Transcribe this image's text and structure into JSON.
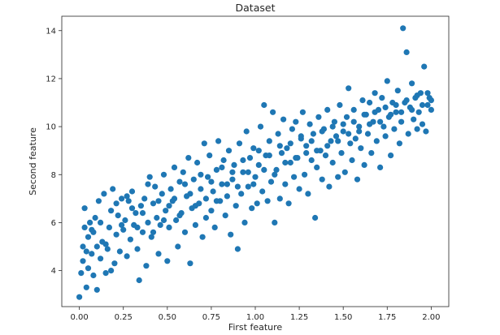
{
  "chart_data": {
    "type": "scatter",
    "title": "Dataset",
    "xlabel": "First feature",
    "ylabel": "Second feature",
    "xlim": [
      -0.1,
      2.1
    ],
    "ylim": [
      2.5,
      14.6
    ],
    "xticks": [
      0.0,
      0.25,
      0.5,
      0.75,
      1.0,
      1.25,
      1.5,
      1.75,
      2.0
    ],
    "xtick_labels": [
      "0.00",
      "0.25",
      "0.50",
      "0.75",
      "1.00",
      "1.25",
      "1.50",
      "1.75",
      "2.00"
    ],
    "yticks": [
      4,
      6,
      8,
      10,
      12,
      14
    ],
    "ytick_labels": [
      "4",
      "6",
      "8",
      "10",
      "12",
      "14"
    ],
    "grid": false,
    "marker_color": "#1f77b4",
    "points": [
      [
        0.0,
        2.9
      ],
      [
        0.01,
        3.9
      ],
      [
        0.02,
        4.4
      ],
      [
        0.02,
        5.0
      ],
      [
        0.03,
        5.8
      ],
      [
        0.03,
        6.6
      ],
      [
        0.04,
        3.3
      ],
      [
        0.05,
        4.1
      ],
      [
        0.05,
        5.4
      ],
      [
        0.06,
        6.0
      ],
      [
        0.07,
        4.7
      ],
      [
        0.08,
        3.8
      ],
      [
        0.08,
        5.6
      ],
      [
        0.09,
        6.2
      ],
      [
        0.1,
        3.2
      ],
      [
        0.1,
        5.0
      ],
      [
        0.11,
        6.9
      ],
      [
        0.12,
        4.5
      ],
      [
        0.13,
        5.2
      ],
      [
        0.14,
        7.2
      ],
      [
        0.15,
        3.9
      ],
      [
        0.16,
        4.9
      ],
      [
        0.17,
        5.8
      ],
      [
        0.18,
        6.5
      ],
      [
        0.19,
        7.4
      ],
      [
        0.2,
        4.3
      ],
      [
        0.21,
        5.5
      ],
      [
        0.22,
        6.3
      ],
      [
        0.23,
        4.8
      ],
      [
        0.24,
        7.0
      ],
      [
        0.25,
        5.7
      ],
      [
        0.26,
        6.1
      ],
      [
        0.27,
        4.6
      ],
      [
        0.28,
        6.9
      ],
      [
        0.29,
        5.3
      ],
      [
        0.3,
        7.3
      ],
      [
        0.31,
        5.9
      ],
      [
        0.32,
        6.4
      ],
      [
        0.33,
        4.9
      ],
      [
        0.34,
        3.6
      ],
      [
        0.35,
        6.7
      ],
      [
        0.36,
        5.6
      ],
      [
        0.37,
        7.0
      ],
      [
        0.38,
        4.2
      ],
      [
        0.39,
        6.0
      ],
      [
        0.4,
        7.9
      ],
      [
        0.41,
        5.4
      ],
      [
        0.42,
        6.8
      ],
      [
        0.43,
        7.5
      ],
      [
        0.44,
        6.2
      ],
      [
        0.45,
        4.7
      ],
      [
        0.46,
        5.9
      ],
      [
        0.47,
        7.2
      ],
      [
        0.48,
        8.0
      ],
      [
        0.49,
        6.5
      ],
      [
        0.5,
        4.4
      ],
      [
        0.51,
        5.8
      ],
      [
        0.52,
        7.4
      ],
      [
        0.53,
        6.9
      ],
      [
        0.54,
        8.3
      ],
      [
        0.55,
        6.1
      ],
      [
        0.56,
        5.0
      ],
      [
        0.57,
        7.7
      ],
      [
        0.58,
        6.4
      ],
      [
        0.59,
        8.1
      ],
      [
        0.6,
        5.6
      ],
      [
        0.61,
        7.1
      ],
      [
        0.62,
        8.7
      ],
      [
        0.63,
        4.3
      ],
      [
        0.64,
        6.6
      ],
      [
        0.65,
        7.8
      ],
      [
        0.66,
        5.9
      ],
      [
        0.67,
        8.5
      ],
      [
        0.68,
        6.8
      ],
      [
        0.69,
        7.4
      ],
      [
        0.7,
        5.4
      ],
      [
        0.71,
        9.3
      ],
      [
        0.72,
        6.2
      ],
      [
        0.73,
        7.9
      ],
      [
        0.74,
        8.8
      ],
      [
        0.75,
        6.5
      ],
      [
        0.76,
        7.3
      ],
      [
        0.77,
        5.8
      ],
      [
        0.78,
        8.2
      ],
      [
        0.79,
        9.4
      ],
      [
        0.8,
        6.9
      ],
      [
        0.81,
        7.6
      ],
      [
        0.82,
        8.6
      ],
      [
        0.83,
        6.3
      ],
      [
        0.84,
        7.1
      ],
      [
        0.85,
        9.0
      ],
      [
        0.86,
        5.5
      ],
      [
        0.87,
        7.8
      ],
      [
        0.88,
        8.4
      ],
      [
        0.89,
        6.7
      ],
      [
        0.9,
        4.9
      ],
      [
        0.91,
        9.3
      ],
      [
        0.92,
        7.2
      ],
      [
        0.93,
        8.1
      ],
      [
        0.94,
        6.0
      ],
      [
        0.95,
        9.8
      ],
      [
        0.96,
        7.5
      ],
      [
        0.97,
        8.7
      ],
      [
        0.98,
        6.6
      ],
      [
        0.99,
        9.1
      ],
      [
        1.0,
        7.9
      ],
      [
        1.01,
        6.8
      ],
      [
        1.02,
        8.4
      ],
      [
        1.03,
        10.0
      ],
      [
        1.04,
        7.3
      ],
      [
        1.05,
        10.9
      ],
      [
        1.06,
        8.8
      ],
      [
        1.07,
        6.9
      ],
      [
        1.08,
        9.4
      ],
      [
        1.09,
        7.7
      ],
      [
        1.1,
        10.6
      ],
      [
        1.11,
        6.0
      ],
      [
        1.12,
        8.2
      ],
      [
        1.13,
        9.7
      ],
      [
        1.14,
        7.0
      ],
      [
        1.15,
        8.9
      ],
      [
        1.16,
        10.3
      ],
      [
        1.17,
        7.6
      ],
      [
        1.18,
        9.1
      ],
      [
        1.19,
        6.8
      ],
      [
        1.2,
        8.5
      ],
      [
        1.21,
        9.9
      ],
      [
        1.22,
        7.9
      ],
      [
        1.23,
        10.2
      ],
      [
        1.24,
        8.7
      ],
      [
        1.25,
        7.4
      ],
      [
        1.26,
        9.5
      ],
      [
        1.27,
        10.6
      ],
      [
        1.28,
        8.0
      ],
      [
        1.29,
        9.2
      ],
      [
        1.3,
        7.2
      ],
      [
        1.31,
        10.1
      ],
      [
        1.32,
        8.6
      ],
      [
        1.33,
        9.7
      ],
      [
        1.34,
        6.2
      ],
      [
        1.35,
        8.3
      ],
      [
        1.36,
        10.4
      ],
      [
        1.37,
        9.0
      ],
      [
        1.38,
        7.8
      ],
      [
        1.39,
        9.9
      ],
      [
        1.4,
        8.8
      ],
      [
        1.41,
        10.7
      ],
      [
        1.42,
        7.5
      ],
      [
        1.43,
        9.4
      ],
      [
        1.44,
        8.5
      ],
      [
        1.45,
        10.2
      ],
      [
        1.46,
        9.6
      ],
      [
        1.47,
        7.9
      ],
      [
        1.48,
        10.9
      ],
      [
        1.49,
        8.9
      ],
      [
        1.5,
        9.8
      ],
      [
        1.51,
        8.1
      ],
      [
        1.52,
        10.4
      ],
      [
        1.53,
        11.6
      ],
      [
        1.54,
        9.3
      ],
      [
        1.55,
        8.6
      ],
      [
        1.56,
        10.7
      ],
      [
        1.57,
        9.5
      ],
      [
        1.58,
        7.8
      ],
      [
        1.59,
        10.0
      ],
      [
        1.6,
        9.1
      ],
      [
        1.61,
        11.1
      ],
      [
        1.62,
        8.4
      ],
      [
        1.63,
        10.5
      ],
      [
        1.64,
        9.7
      ],
      [
        1.65,
        11.0
      ],
      [
        1.66,
        8.9
      ],
      [
        1.67,
        10.2
      ],
      [
        1.68,
        11.4
      ],
      [
        1.69,
        9.4
      ],
      [
        1.7,
        10.7
      ],
      [
        1.71,
        8.3
      ],
      [
        1.72,
        11.2
      ],
      [
        1.73,
        10.0
      ],
      [
        1.74,
        9.6
      ],
      [
        1.75,
        11.9
      ],
      [
        1.76,
        10.4
      ],
      [
        1.77,
        8.8
      ],
      [
        1.78,
        11.0
      ],
      [
        1.79,
        9.9
      ],
      [
        1.8,
        10.6
      ],
      [
        1.81,
        11.5
      ],
      [
        1.82,
        9.3
      ],
      [
        1.83,
        10.2
      ],
      [
        1.84,
        14.1
      ],
      [
        1.85,
        11.0
      ],
      [
        1.86,
        13.1
      ],
      [
        1.87,
        9.7
      ],
      [
        1.88,
        10.8
      ],
      [
        1.89,
        11.8
      ],
      [
        1.9,
        10.3
      ],
      [
        1.91,
        11.2
      ],
      [
        1.92,
        9.9
      ],
      [
        1.93,
        10.6
      ],
      [
        1.94,
        11.4
      ],
      [
        1.95,
        10.1
      ],
      [
        1.96,
        12.5
      ],
      [
        1.97,
        9.8
      ],
      [
        1.98,
        10.9
      ],
      [
        1.99,
        11.2
      ],
      [
        2.0,
        10.7
      ],
      [
        2.0,
        11.1
      ],
      [
        0.04,
        4.8
      ],
      [
        0.07,
        5.7
      ],
      [
        0.12,
        6.0
      ],
      [
        0.15,
        5.1
      ],
      [
        0.18,
        4.0
      ],
      [
        0.21,
        6.8
      ],
      [
        0.24,
        5.9
      ],
      [
        0.27,
        7.1
      ],
      [
        0.3,
        6.6
      ],
      [
        0.33,
        5.8
      ],
      [
        0.36,
        6.4
      ],
      [
        0.39,
        7.6
      ],
      [
        0.42,
        5.6
      ],
      [
        0.45,
        6.9
      ],
      [
        0.48,
        6.1
      ],
      [
        0.51,
        6.7
      ],
      [
        0.54,
        7.0
      ],
      [
        0.57,
        6.3
      ],
      [
        0.6,
        7.6
      ],
      [
        0.63,
        7.2
      ],
      [
        0.66,
        6.7
      ],
      [
        0.69,
        8.0
      ],
      [
        0.72,
        7.0
      ],
      [
        0.75,
        7.7
      ],
      [
        0.78,
        6.9
      ],
      [
        0.81,
        8.3
      ],
      [
        0.84,
        7.6
      ],
      [
        0.87,
        8.1
      ],
      [
        0.9,
        7.5
      ],
      [
        0.93,
        8.6
      ],
      [
        0.96,
        8.1
      ],
      [
        0.99,
        7.6
      ],
      [
        1.02,
        9.0
      ],
      [
        1.05,
        8.2
      ],
      [
        1.08,
        8.8
      ],
      [
        1.11,
        8.0
      ],
      [
        1.14,
        9.2
      ],
      [
        1.17,
        8.5
      ],
      [
        1.2,
        9.3
      ],
      [
        1.23,
        8.7
      ],
      [
        1.26,
        9.6
      ],
      [
        1.29,
        8.9
      ],
      [
        1.32,
        9.4
      ],
      [
        1.35,
        9.0
      ],
      [
        1.38,
        9.8
      ],
      [
        1.41,
        9.2
      ],
      [
        1.44,
        10.0
      ],
      [
        1.47,
        9.4
      ],
      [
        1.5,
        10.1
      ],
      [
        1.53,
        9.7
      ],
      [
        1.56,
        10.2
      ],
      [
        1.59,
        9.8
      ],
      [
        1.62,
        10.5
      ],
      [
        1.65,
        10.1
      ],
      [
        1.68,
        10.6
      ],
      [
        1.71,
        10.2
      ],
      [
        1.74,
        10.8
      ],
      [
        1.77,
        10.5
      ],
      [
        1.8,
        10.9
      ],
      [
        1.83,
        10.6
      ],
      [
        1.86,
        11.1
      ],
      [
        1.89,
        10.7
      ],
      [
        1.92,
        11.3
      ],
      [
        1.95,
        10.9
      ],
      [
        1.98,
        11.4
      ]
    ]
  }
}
